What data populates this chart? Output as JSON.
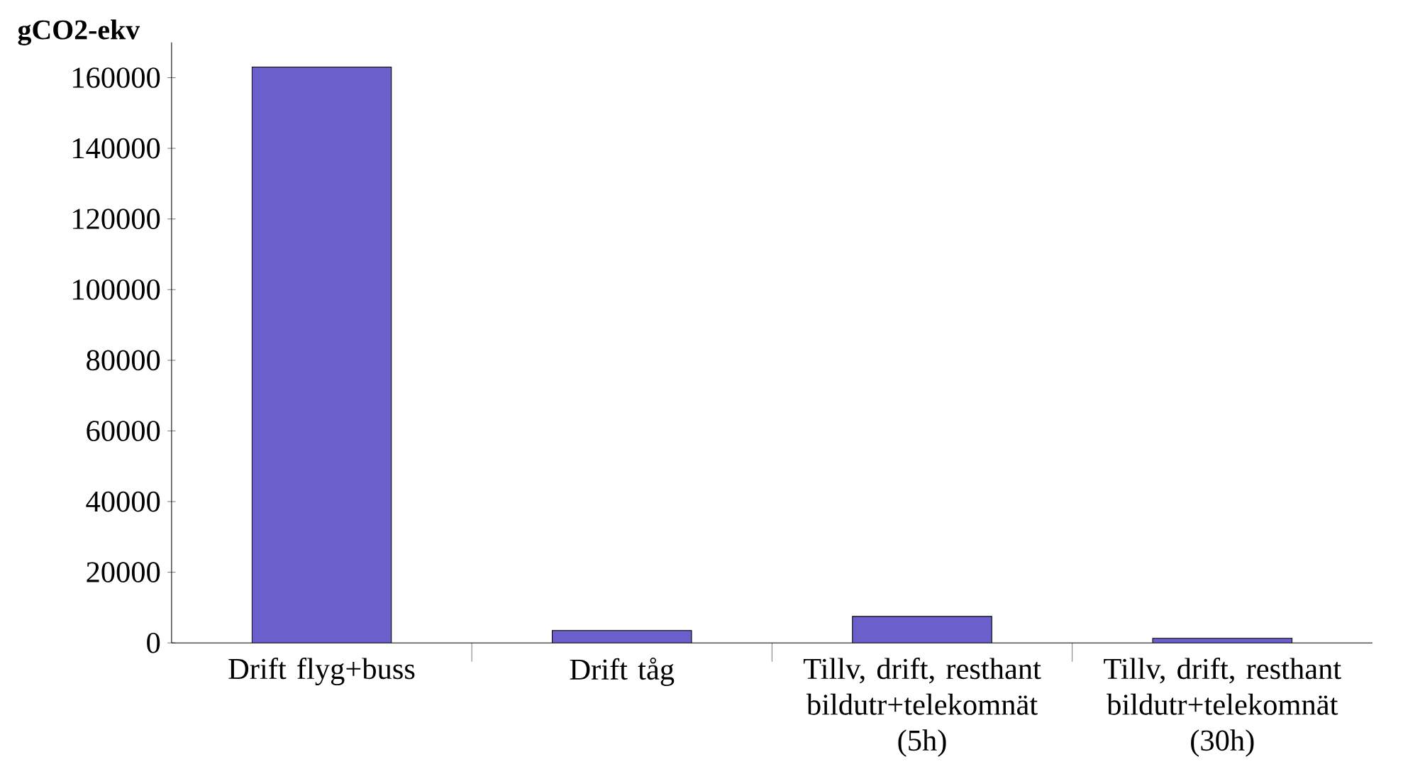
{
  "chart_data": {
    "type": "bar",
    "ylabel": "gCO2-ekv",
    "categories": [
      "Drift flyg+buss",
      "Drift tåg",
      "Tillv, drift, resthant bildutr+telekomnät (5h)",
      "Tillv, drift, resthant bildutr+telekomnät (30h)"
    ],
    "values": [
      163000,
      3500,
      7500,
      1300
    ],
    "color": "#6a5fcb",
    "ylim": [
      0,
      170000
    ],
    "yticks": [
      0,
      20000,
      40000,
      60000,
      80000,
      100000,
      120000,
      140000,
      160000
    ],
    "grid": false
  }
}
